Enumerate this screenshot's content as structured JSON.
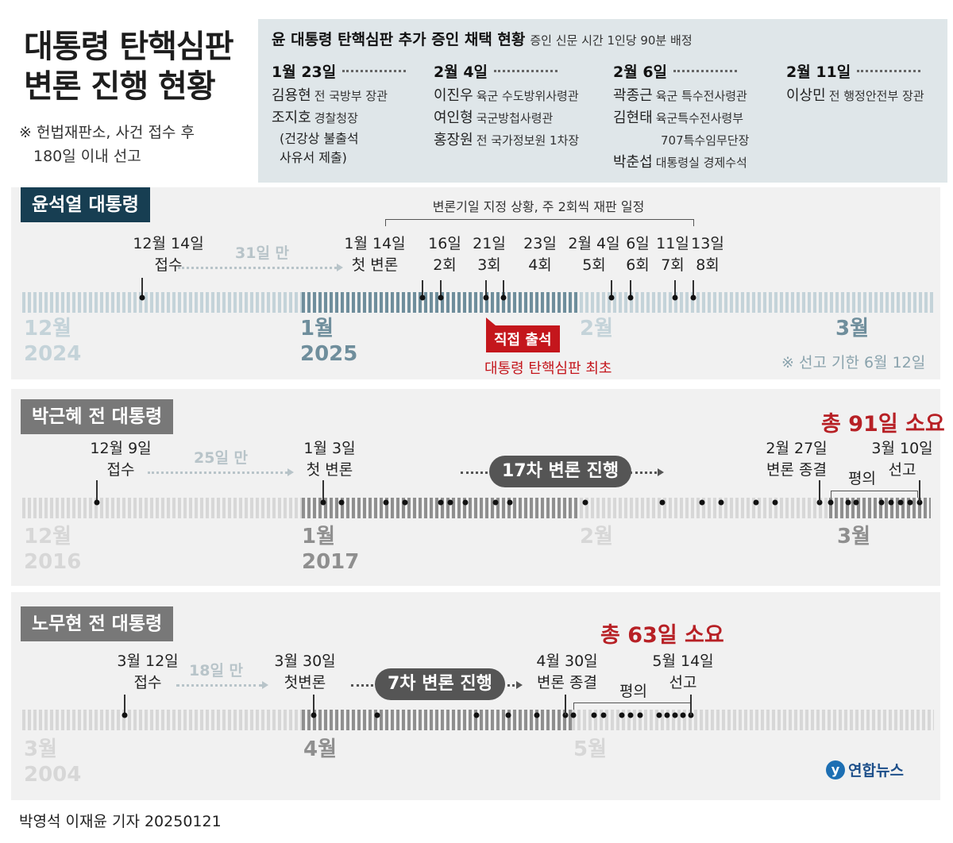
{
  "title": {
    "line1": "대통령 탄핵심판",
    "line2": "변론 진행 현황"
  },
  "note": {
    "line1": "※ 헌법재판소, 사건 접수 후",
    "line2": "180일 이내 선고"
  },
  "witnesses": {
    "title": "윤 대통령 탄핵심판 추가 증인 채택 현황",
    "subtitle": "증인 신문 시간 1인당 90분 배정",
    "groups": [
      {
        "date": "1월 23일",
        "items": [
          {
            "name": "김용현",
            "role": "전 국방부 장관"
          },
          {
            "name": "조지호",
            "role": "경찰청장"
          },
          {
            "name": "(건강상 불출석",
            "role": ""
          },
          {
            "name": "사유서 제출)",
            "role": ""
          }
        ]
      },
      {
        "date": "2월 4일",
        "items": [
          {
            "name": "이진우",
            "role": "육군 수도방위사령관"
          },
          {
            "name": "여인형",
            "role": "국군방첩사령관"
          },
          {
            "name": "홍장원",
            "role": "전 국가정보원 1차장"
          }
        ]
      },
      {
        "date": "2월 6일",
        "items": [
          {
            "name": "곽종근",
            "role": "육군 특수전사령관"
          },
          {
            "name": "김현태",
            "role": "육군특수전사령부"
          },
          {
            "name": "",
            "role": "707특수임무단장"
          },
          {
            "name": "박춘섭",
            "role": "대통령실 경제수석"
          }
        ]
      },
      {
        "date": "2월 11일",
        "items": [
          {
            "name": "이상민",
            "role": "전 행정안전부 장관"
          }
        ]
      }
    ]
  },
  "yoon": {
    "label": "윤석열 대통령",
    "bracket_note": "변론기일 지정 상황, 주 2회씩 재판 일정",
    "gap": "31일 만",
    "receipt": {
      "date": "12월 14일",
      "desc": "접수"
    },
    "hearings": [
      {
        "date": "1월 14일",
        "desc": "첫 변론"
      },
      {
        "date": "16일",
        "desc": "2회"
      },
      {
        "date": "21일",
        "desc": "3회"
      },
      {
        "date": "23일",
        "desc": "4회"
      },
      {
        "date": "2월 4일",
        "desc": "5회"
      },
      {
        "date": "6일",
        "desc": "6회"
      },
      {
        "date": "11일",
        "desc": "7회"
      },
      {
        "date": "13일",
        "desc": "8회"
      }
    ],
    "months": [
      {
        "m": "12월",
        "y": "2024"
      },
      {
        "m": "1월",
        "y": "2025"
      },
      {
        "m": "2월",
        "y": ""
      },
      {
        "m": "3월",
        "y": ""
      }
    ],
    "callout": "직접 출석",
    "callout_note": "대통령 탄핵심판 최초",
    "deadline": "※ 선고 기한 6월 12일",
    "colors": {
      "label_bg": "#173e52",
      "strip": "#6f8e9c",
      "strip_light": "#c4d3d9",
      "callout": "#c4161c"
    }
  },
  "park": {
    "label": "박근혜 전 대통령",
    "total": "총 91일 소요",
    "gap": "25일 만",
    "pill": "17차 변론 진행",
    "receipt": {
      "date": "12월 9일",
      "desc": "접수"
    },
    "first": {
      "date": "1월 3일",
      "desc": "첫 변론"
    },
    "end": {
      "date": "2월 27일",
      "desc": "변론 종결"
    },
    "deliberation": "평의",
    "verdict": {
      "date": "3월 10일",
      "desc": "선고"
    },
    "months": [
      {
        "m": "12월",
        "y": "2016"
      },
      {
        "m": "1월",
        "y": "2017"
      },
      {
        "m": "2월",
        "y": ""
      },
      {
        "m": "3월",
        "y": ""
      }
    ]
  },
  "roh": {
    "label": "노무현 전 대통령",
    "total": "총 63일 소요",
    "gap": "18일 만",
    "pill": "7차 변론 진행",
    "receipt": {
      "date": "3월 12일",
      "desc": "접수"
    },
    "first": {
      "date": "3월 30일",
      "desc": "첫변론"
    },
    "end": {
      "date": "4월 30일",
      "desc": "변론 종결"
    },
    "deliberation": "평의",
    "verdict": {
      "date": "5월 14일",
      "desc": "선고"
    },
    "months": [
      {
        "m": "3월",
        "y": "2004"
      },
      {
        "m": "4월",
        "y": ""
      },
      {
        "m": "5월",
        "y": ""
      }
    ]
  },
  "logo": "연합뉴스",
  "credit": "박영석 이재윤 기자  20250121"
}
